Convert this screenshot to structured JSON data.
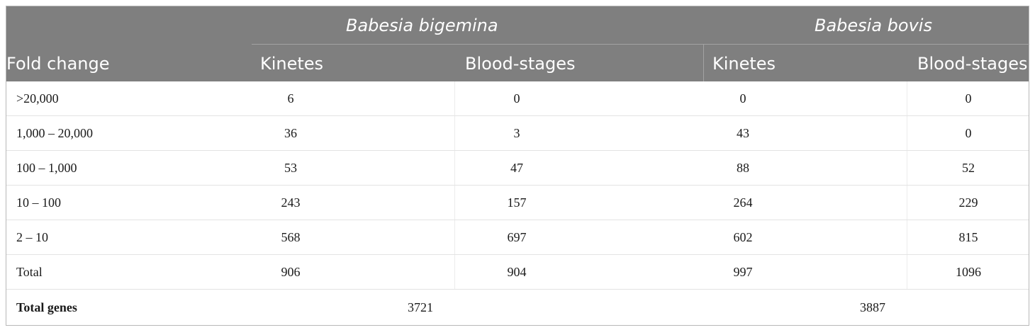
{
  "header": {
    "group1": "Babesia bigemina",
    "group2": "Babesia bovis",
    "col_label": "Fold change",
    "g1_col1": "Kinetes",
    "g1_col2": "Blood-stages",
    "g2_col1": "Kinetes",
    "g2_col2": "Blood-stages"
  },
  "rows": [
    {
      "label": ">20,000",
      "v1": "6",
      "v2": "0",
      "v3": "0",
      "v4": "0"
    },
    {
      "label": "1,000 – 20,000",
      "v1": "36",
      "v2": "3",
      "v3": "43",
      "v4": "0"
    },
    {
      "label": "100 – 1,000",
      "v1": "53",
      "v2": "47",
      "v3": "88",
      "v4": "52"
    },
    {
      "label": "10 – 100",
      "v1": "243",
      "v2": "157",
      "v3": "264",
      "v4": "229"
    },
    {
      "label": "2 – 10",
      "v1": "568",
      "v2": "697",
      "v3": "602",
      "v4": "815"
    },
    {
      "label": "Total",
      "v1": "906",
      "v2": "904",
      "v3": "997",
      "v4": "1096"
    }
  ],
  "total_genes": {
    "label": "Total genes",
    "bigemina": "3721",
    "bovis": "3887"
  }
}
